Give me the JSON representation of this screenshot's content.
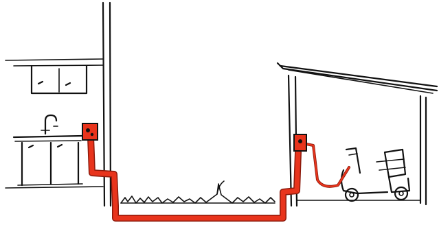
{
  "illustration": {
    "description_label": "",
    "colors": {
      "ink": "#111111",
      "background": "#ffffff",
      "cable": "#e8341c",
      "cable_outline": "#8a1a0c"
    },
    "icons": {
      "house_outlet": "power-outlet-icon",
      "shed_outlet": "power-outlet-icon",
      "vehicle": "mobility-scooter-icon",
      "sink": "sink-faucet-icon"
    }
  }
}
